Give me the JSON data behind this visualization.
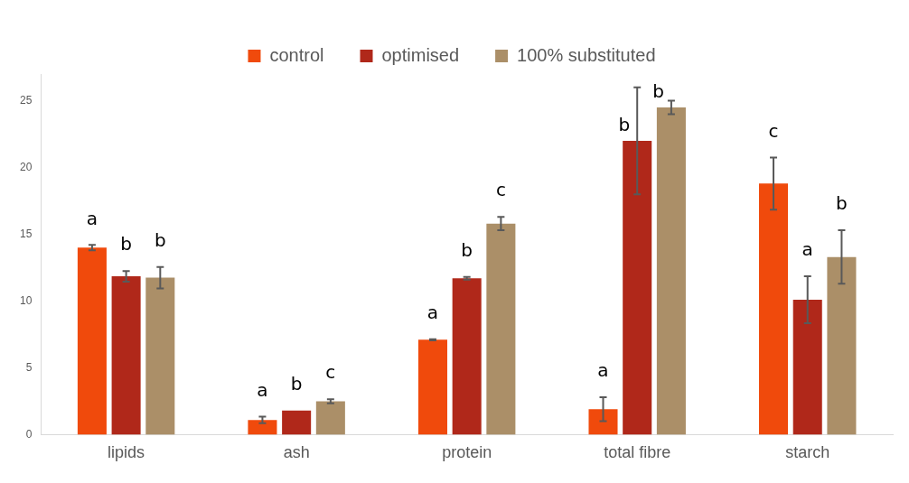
{
  "chart_data": {
    "type": "bar",
    "categories": [
      "lipids",
      "ash",
      "protein",
      "total fibre",
      "starch"
    ],
    "series": [
      {
        "name": "control",
        "color": "#f04a0c",
        "values": [
          14.0,
          1.1,
          7.1,
          1.9,
          18.8
        ],
        "errors": [
          0.2,
          0.25,
          0.05,
          0.9,
          1.95
        ],
        "value_labels": [
          "a",
          "a",
          "a",
          "a",
          "c"
        ]
      },
      {
        "name": "optimised",
        "color": "#b0281a",
        "values": [
          11.85,
          1.8,
          11.7,
          22.0,
          10.1
        ],
        "errors": [
          0.4,
          null,
          0.1,
          4.0,
          1.75
        ],
        "value_labels": [
          "b",
          "b",
          "b",
          "b",
          "a"
        ]
      },
      {
        "name": "100% substituted",
        "color": "#ab8f68",
        "values": [
          11.75,
          2.5,
          15.8,
          24.5,
          13.3
        ],
        "errors": [
          0.8,
          0.15,
          0.5,
          0.5,
          2.0
        ],
        "value_labels": [
          "b",
          "c",
          "c",
          "b",
          "b"
        ]
      }
    ],
    "ylim": [
      0,
      27
    ],
    "yticks": [
      0,
      5,
      10,
      15,
      20,
      25
    ],
    "grid": false,
    "legend": "top"
  }
}
